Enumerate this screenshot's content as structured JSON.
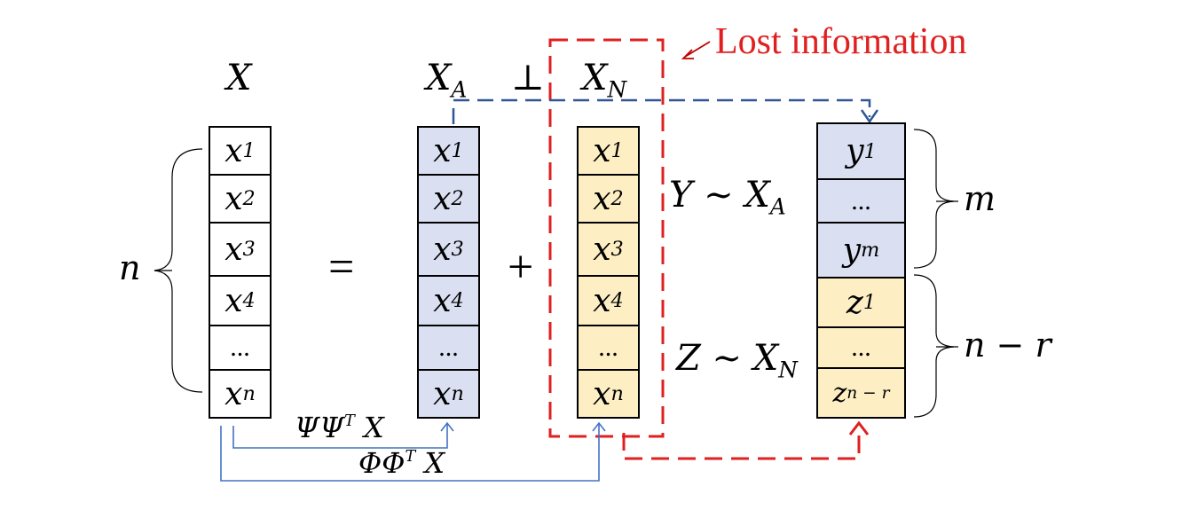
{
  "colors": {
    "blue_fill": "#dae0f2",
    "yellow_fill": "#fdeec4",
    "red": "#e02020",
    "blue": "#4472c4",
    "navy": "#2f5597"
  },
  "annotation": {
    "lost_info": "Lost information"
  },
  "headers": {
    "x": "X",
    "xa_base": "X",
    "xa_sub": "A",
    "perp": "⊥",
    "xn_base": "X",
    "xn_sub": "N"
  },
  "equals": "=",
  "plus": "+",
  "dots": "...",
  "vector_x": {
    "items": [
      {
        "b": "x",
        "s": "1"
      },
      {
        "b": "x",
        "s": "2"
      },
      {
        "b": "x",
        "s": "3"
      },
      {
        "b": "x",
        "s": "4"
      },
      {
        "b": "...",
        "s": ""
      },
      {
        "b": "x",
        "s": "n"
      }
    ]
  },
  "vector_y_z": {
    "y1": {
      "b": "y",
      "s": "1"
    },
    "ydots": "...",
    "ym": {
      "b": "y",
      "s": "m"
    },
    "z1": {
      "b": "z",
      "s": "1"
    },
    "zdots": "...",
    "zn": {
      "b": "z",
      "s": "n − r"
    }
  },
  "relations": {
    "y_rel": "Y ∼ X",
    "y_sub": "A",
    "z_rel": "Z ∼ X",
    "z_sub": "N"
  },
  "braces": {
    "n": "n",
    "m": "m",
    "n_minus_r": "n − r"
  },
  "projections": {
    "psi_base": "ΨΨ",
    "psi_sup": "T",
    "psi_tail": " X",
    "phi_base": "ΦΦ",
    "phi_sup": "T",
    "phi_tail": " X"
  }
}
